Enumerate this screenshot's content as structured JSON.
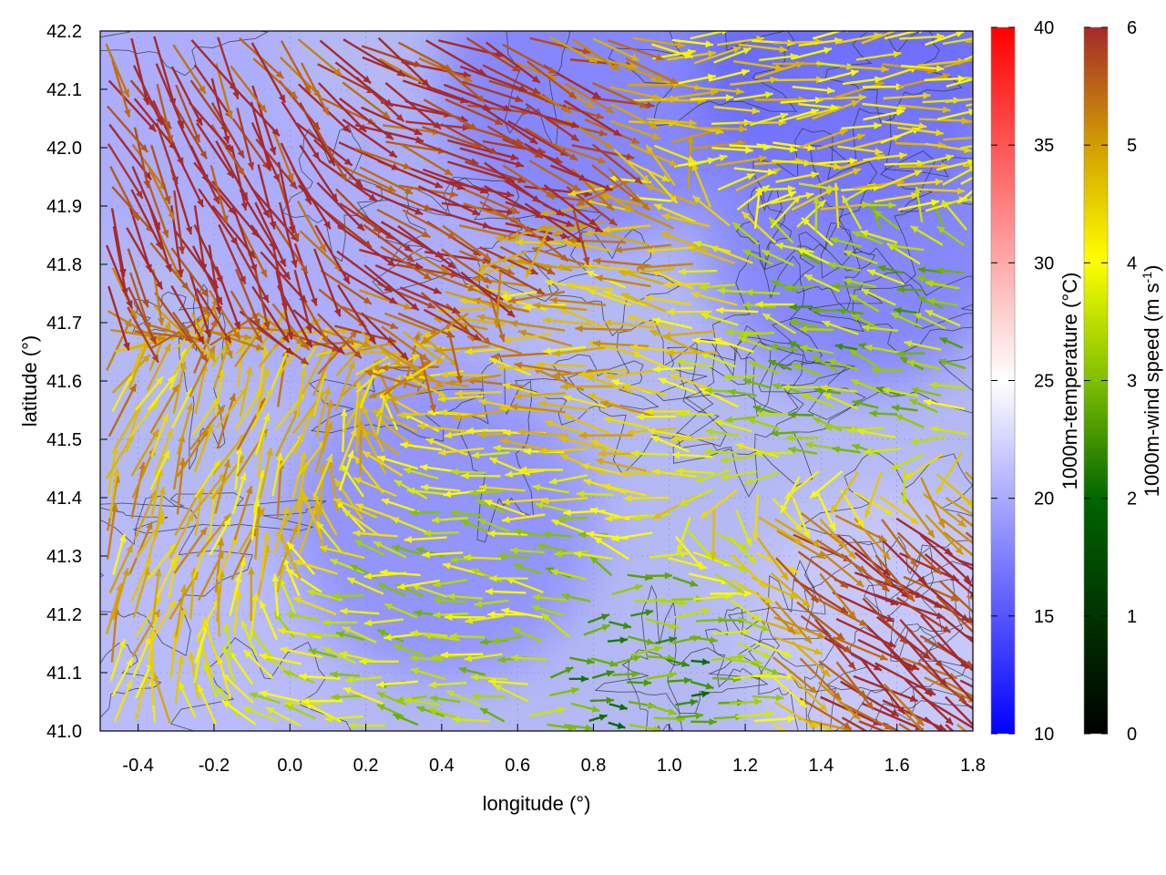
{
  "chart_data": {
    "type": "heatmap",
    "subtype": "temperature field with wind vectors and contour lines",
    "title": "",
    "xlabel": "longitude (°)",
    "ylabel": "latitude (°)",
    "xlim": [
      -0.5,
      1.8
    ],
    "ylim": [
      41.0,
      42.2
    ],
    "xticks": [
      "-0.4",
      "-0.2",
      "0.0",
      "0.2",
      "0.4",
      "0.6",
      "0.8",
      "1.0",
      "1.2",
      "1.4",
      "1.6",
      "1.8"
    ],
    "yticks": [
      "41.0",
      "41.1",
      "41.2",
      "41.3",
      "41.4",
      "41.5",
      "41.6",
      "41.7",
      "41.8",
      "41.9",
      "42.0",
      "42.1",
      "42.2"
    ],
    "grid": true,
    "colorbars": [
      {
        "label": "1000m-temperature (°C)",
        "range": [
          10,
          40
        ],
        "ticks": [
          "10",
          "15",
          "20",
          "25",
          "30",
          "35",
          "40"
        ],
        "colors": [
          "#0000ff",
          "#ffffff",
          "#ff0000"
        ]
      },
      {
        "label_main": "1000m-wind speed (m s",
        "label_sup": "-1",
        "label_end": ")",
        "range": [
          0,
          6
        ],
        "ticks": [
          "0",
          "1",
          "2",
          "3",
          "4",
          "5",
          "6"
        ],
        "colors": [
          "#000000",
          "#006400",
          "#7fbf00",
          "#ffff00",
          "#d2a000",
          "#a52a2a"
        ]
      }
    ],
    "temperature_field_estimate": [
      {
        "lon": -0.4,
        "lat": 42.1,
        "t": 20
      },
      {
        "lon": 0.2,
        "lat": 41.8,
        "t": 20
      },
      {
        "lon": 0.8,
        "lat": 42.1,
        "t": 17
      },
      {
        "lon": 1.5,
        "lat": 42.15,
        "t": 15
      },
      {
        "lon": 1.5,
        "lat": 41.85,
        "t": 17
      },
      {
        "lon": 0.4,
        "lat": 41.35,
        "t": 18
      },
      {
        "lon": 1.6,
        "lat": 41.15,
        "t": 22
      },
      {
        "lon": -0.3,
        "lat": 41.1,
        "t": 21
      }
    ],
    "wind_vectors_estimate": [
      {
        "region": "northwest",
        "lon": -0.2,
        "lat": 41.9,
        "u": 2.0,
        "v": -4.5,
        "speed": 6
      },
      {
        "region": "north-central",
        "lon": 0.4,
        "lat": 41.95,
        "u": 5.0,
        "v": -2.0,
        "speed": 6
      },
      {
        "region": "northeast",
        "lon": 1.4,
        "lat": 42.1,
        "u": 3.5,
        "v": 0.4,
        "speed": 4
      },
      {
        "region": "central",
        "lon": 0.8,
        "lat": 41.7,
        "u": -4.0,
        "v": 0.5,
        "speed": 4.5
      },
      {
        "region": "east-central",
        "lon": 1.5,
        "lat": 41.65,
        "u": -2.0,
        "v": 0.5,
        "speed": 2.5
      },
      {
        "region": "southwest",
        "lon": -0.2,
        "lat": 41.5,
        "u": 1.0,
        "v": 2.5,
        "speed": 4.5
      },
      {
        "region": "south-central",
        "lon": 0.5,
        "lat": 41.2,
        "u": -2.5,
        "v": 0.3,
        "speed": 3
      },
      {
        "region": "southeast",
        "lon": 1.6,
        "lat": 41.2,
        "u": 3.5,
        "v": -2.5,
        "speed": 6
      },
      {
        "region": "south",
        "lon": 0.9,
        "lat": 41.05,
        "u": 2.0,
        "v": 0.0,
        "speed": 2
      }
    ]
  }
}
